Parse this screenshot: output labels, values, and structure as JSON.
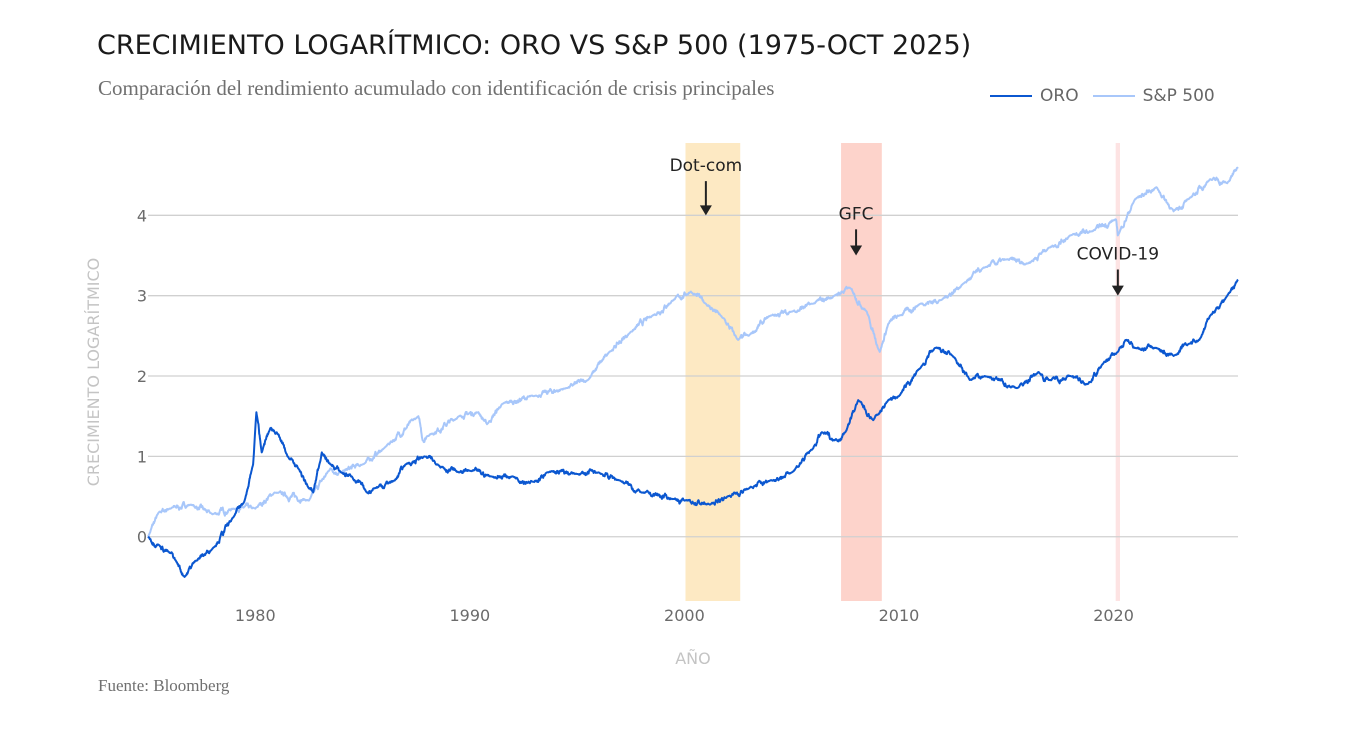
{
  "header": {
    "title": "CRECIMIENTO LOGARÍTMICO: ORO VS S&P 500 (1975-OCT 2025)",
    "subtitle": "Comparación del rendimiento acumulado con identificación de crisis principales"
  },
  "legend": [
    {
      "label": "ORO",
      "color": "#0b57d0"
    },
    {
      "label": "S&P 500",
      "color": "#a8c7fa"
    }
  ],
  "footer": {
    "source": "Fuente: Bloomberg"
  },
  "chart_data": {
    "type": "line",
    "title": "CRECIMIENTO LOGARÍTMICO: ORO VS S&P 500 (1975-OCT 2025)",
    "subtitle": "Comparación del rendimiento acumulado con identificación de crisis principales",
    "xlabel": "AÑO",
    "ylabel": "CRECIMIENTO LOGARÍTMICO",
    "xlim": [
      1975,
      2025.8
    ],
    "ylim": [
      -0.8,
      4.9
    ],
    "x_ticks": [
      1980,
      1990,
      2000,
      2010,
      2020
    ],
    "x_tick_labels": [
      "1980",
      "1990",
      "2000",
      "2010",
      "2020"
    ],
    "y_ticks": [
      0,
      1,
      2,
      3,
      4
    ],
    "y_tick_labels": [
      "0",
      "1",
      "2",
      "3",
      "4"
    ],
    "grid": "horizontal",
    "legend_position": "top-right",
    "series": [
      {
        "name": "ORO",
        "color": "#0b57d0",
        "x": [
          1975.0,
          1975.5,
          1976.0,
          1976.3,
          1976.7,
          1977.2,
          1978.0,
          1979.0,
          1979.5,
          1979.9,
          1980.05,
          1980.3,
          1980.7,
          1981.0,
          1981.5,
          1982.0,
          1982.5,
          1982.7,
          1983.1,
          1983.5,
          1984.0,
          1984.5,
          1985.2,
          1985.5,
          1986.5,
          1987.0,
          1987.9,
          1988.5,
          1989.5,
          1990.0,
          1991.0,
          1992.0,
          1993.0,
          1993.6,
          1995.0,
          1996.0,
          1997.0,
          1998.0,
          1999.5,
          2000.0,
          2001.2,
          2002.0,
          2003.0,
          2004.0,
          2005.0,
          2006.0,
          2006.4,
          2007.0,
          2007.5,
          2008.1,
          2008.8,
          2009.5,
          2010.0,
          2011.0,
          2011.7,
          2012.5,
          2013.3,
          2014.0,
          2015.5,
          2016.5,
          2017.0,
          2018.0,
          2018.8,
          2019.5,
          2020.2,
          2020.6,
          2021.0,
          2022.0,
          2022.8,
          2023.5,
          2024.0,
          2024.5,
          2025.3,
          2025.8
        ],
        "values": [
          0.0,
          -0.1,
          -0.2,
          -0.3,
          -0.5,
          -0.3,
          -0.15,
          0.25,
          0.45,
          0.9,
          1.55,
          1.05,
          1.35,
          1.3,
          1.0,
          0.85,
          0.6,
          0.55,
          1.05,
          0.9,
          0.8,
          0.75,
          0.55,
          0.6,
          0.7,
          0.9,
          1.0,
          0.9,
          0.8,
          0.82,
          0.75,
          0.75,
          0.68,
          0.8,
          0.78,
          0.8,
          0.7,
          0.55,
          0.47,
          0.45,
          0.4,
          0.5,
          0.6,
          0.7,
          0.8,
          1.1,
          1.3,
          1.2,
          1.3,
          1.7,
          1.45,
          1.7,
          1.75,
          2.1,
          2.35,
          2.25,
          1.95,
          2.0,
          1.85,
          2.05,
          1.95,
          2.0,
          1.9,
          2.15,
          2.3,
          2.45,
          2.35,
          2.35,
          2.25,
          2.4,
          2.45,
          2.75,
          3.0,
          3.2
        ]
      },
      {
        "name": "S&P 500",
        "color": "#a8c7fa",
        "x": [
          1975.0,
          1975.5,
          1976.0,
          1977.0,
          1978.0,
          1979.0,
          1980.0,
          1980.9,
          1982.5,
          1983.5,
          1984.0,
          1985.0,
          1986.0,
          1987.6,
          1987.8,
          1988.0,
          1989.5,
          1990.4,
          1990.8,
          1991.5,
          1993.0,
          1994.5,
          1995.5,
          1996.5,
          1997.5,
          1998.5,
          1999.5,
          2000.3,
          2001.0,
          2001.7,
          2002.5,
          2003.0,
          2004.0,
          2005.0,
          2006.0,
          2007.0,
          2007.7,
          2008.5,
          2009.1,
          2009.5,
          2010.0,
          2011.0,
          2012.0,
          2013.0,
          2014.0,
          2015.0,
          2016.0,
          2017.0,
          2018.0,
          2019.0,
          2020.1,
          2020.2,
          2021.0,
          2022.0,
          2022.8,
          2023.5,
          2024.5,
          2025.3,
          2025.8
        ],
        "values": [
          0.0,
          0.3,
          0.35,
          0.4,
          0.28,
          0.35,
          0.35,
          0.55,
          0.45,
          0.85,
          0.8,
          0.9,
          1.1,
          1.5,
          1.2,
          1.25,
          1.5,
          1.55,
          1.4,
          1.65,
          1.75,
          1.85,
          1.95,
          2.3,
          2.55,
          2.75,
          2.95,
          3.05,
          2.9,
          2.75,
          2.45,
          2.5,
          2.75,
          2.8,
          2.9,
          3.0,
          3.1,
          2.8,
          2.3,
          2.65,
          2.75,
          2.9,
          2.95,
          3.15,
          3.35,
          3.45,
          3.4,
          3.6,
          3.75,
          3.8,
          3.95,
          3.75,
          4.2,
          4.35,
          4.05,
          4.2,
          4.45,
          4.4,
          4.6
        ]
      }
    ],
    "shaded_regions": [
      {
        "label": "Dot-com",
        "start": 2000.05,
        "end": 2002.6,
        "color": "#fde9c3",
        "arrow_x": 2001.0,
        "label_y": 4.55,
        "arrow_tip_y": 4.0
      },
      {
        "label": "GFC",
        "start": 2007.3,
        "end": 2009.2,
        "color": "#fdd3cb",
        "arrow_x": 2008.0,
        "label_y": 3.95,
        "arrow_tip_y": 3.5
      },
      {
        "label": "COVID-19",
        "start": 2020.1,
        "end": 2020.3,
        "color": "#fde3e3",
        "arrow_x": 2020.2,
        "label_y": 3.45,
        "arrow_tip_y": 3.0
      }
    ]
  }
}
